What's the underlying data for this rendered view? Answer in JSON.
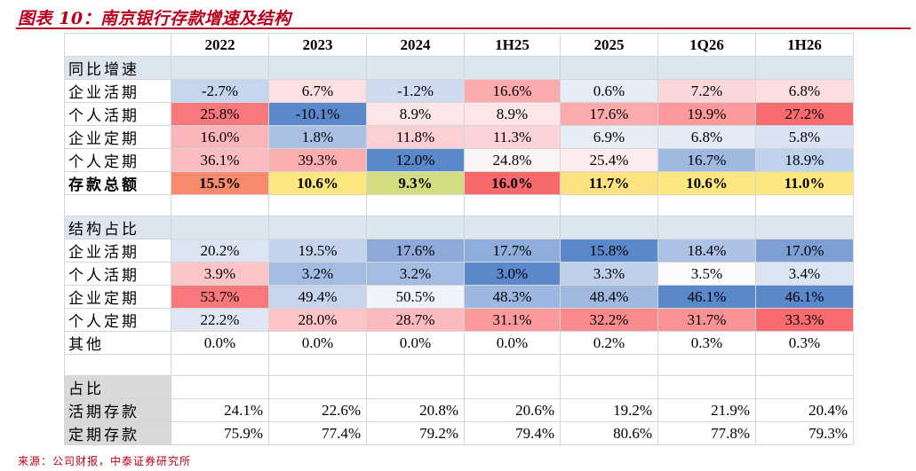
{
  "title": "图表 10：南京银行存款增速及结构",
  "columns": [
    "2022",
    "2023",
    "2024",
    "1H25",
    "2025",
    "1Q26",
    "1H26"
  ],
  "growth": {
    "header": "同比增速",
    "rows": [
      {
        "label": "企业活期",
        "values": [
          "-2.7%",
          "6.7%",
          "-1.2%",
          "16.6%",
          "0.6%",
          "7.2%",
          "6.8%"
        ],
        "colors": [
          "#c5d5ec",
          "#fde0e3",
          "#cfdcf0",
          "#fbaaae",
          "#e6ecf7",
          "#fcd7da",
          "#fcdde0"
        ]
      },
      {
        "label": "个人活期",
        "values": [
          "25.8%",
          "-10.1%",
          "8.9%",
          "8.9%",
          "17.6%",
          "19.9%",
          "27.2%"
        ],
        "colors": [
          "#f8797c",
          "#5b87cb",
          "#fde6e8",
          "#fde6e8",
          "#fbaaae",
          "#fb999c",
          "#f86b6e"
        ]
      },
      {
        "label": "企业定期",
        "values": [
          "16.0%",
          "1.8%",
          "11.8%",
          "11.3%",
          "6.9%",
          "6.8%",
          "5.8%"
        ],
        "colors": [
          "#fbb5b8",
          "#a9c0e3",
          "#fcd0d3",
          "#fcd3d6",
          "#e7edf7",
          "#e4eaf6",
          "#dae3f3"
        ]
      },
      {
        "label": "个人定期",
        "values": [
          "36.1%",
          "39.3%",
          "12.0%",
          "24.8%",
          "25.4%",
          "16.7%",
          "18.9%"
        ],
        "colors": [
          "#fbbcbf",
          "#fbadb0",
          "#5b87cb",
          "#fbf4f5",
          "#fdebed",
          "#a0b9e1",
          "#c0d1ec"
        ]
      },
      {
        "label": "存款总额",
        "values": [
          "15.5%",
          "10.6%",
          "9.3%",
          "16.0%",
          "11.7%",
          "10.6%",
          "11.0%"
        ],
        "colors": [
          "#f98a6e",
          "#fce87f",
          "#d3dc81",
          "#f8696b",
          "#fde380",
          "#fce87f",
          "#fde880"
        ],
        "bold": true
      }
    ]
  },
  "structure": {
    "header": "结构占比",
    "rows": [
      {
        "label": "企业活期",
        "values": [
          "20.2%",
          "19.5%",
          "17.6%",
          "17.7%",
          "15.8%",
          "18.4%",
          "17.0%"
        ],
        "colors": [
          "#dbe4f3",
          "#c4d4ec",
          "#8daad9",
          "#8fadda",
          "#5b87cb",
          "#adc2e4",
          "#7d9fd4"
        ]
      },
      {
        "label": "个人活期",
        "values": [
          "3.9%",
          "3.2%",
          "3.2%",
          "3.0%",
          "3.3%",
          "3.5%",
          "3.4%"
        ],
        "colors": [
          "#fbc5c8",
          "#a4bce2",
          "#a4bce2",
          "#5b87cb",
          "#c0d0ea",
          "#fdfbfc",
          "#dce5f4"
        ]
      },
      {
        "label": "企业定期",
        "values": [
          "53.7%",
          "49.4%",
          "50.5%",
          "48.3%",
          "48.4%",
          "46.1%",
          "46.1%"
        ],
        "colors": [
          "#f8797c",
          "#c6d5ec",
          "#f0f3fa",
          "#9db7e0",
          "#a1b9e1",
          "#5b87cb",
          "#5b87cb"
        ]
      },
      {
        "label": "个人定期",
        "values": [
          "22.2%",
          "28.0%",
          "28.7%",
          "31.1%",
          "32.2%",
          "31.7%",
          "33.3%"
        ],
        "colors": [
          "#dfe6f4",
          "#fbc4c7",
          "#fbbabd",
          "#fa9a9d",
          "#f98a8d",
          "#f99295",
          "#f86b6e"
        ]
      },
      {
        "label": "其他",
        "values": [
          "0.0%",
          "0.0%",
          "0.0%",
          "0.0%",
          "0.2%",
          "0.3%",
          "0.3%"
        ],
        "colors": [
          "",
          "",
          "",
          "",
          "",
          "",
          ""
        ]
      }
    ]
  },
  "share": {
    "header": "占比",
    "rows": [
      {
        "label": "活期存款",
        "values": [
          "24.1%",
          "22.6%",
          "20.8%",
          "20.6%",
          "19.2%",
          "21.9%",
          "20.4%"
        ]
      },
      {
        "label": "定期存款",
        "values": [
          "75.9%",
          "77.4%",
          "79.2%",
          "79.4%",
          "80.6%",
          "77.8%",
          "79.3%"
        ]
      }
    ]
  },
  "source": "来源：公司财报，中泰证券研究所"
}
